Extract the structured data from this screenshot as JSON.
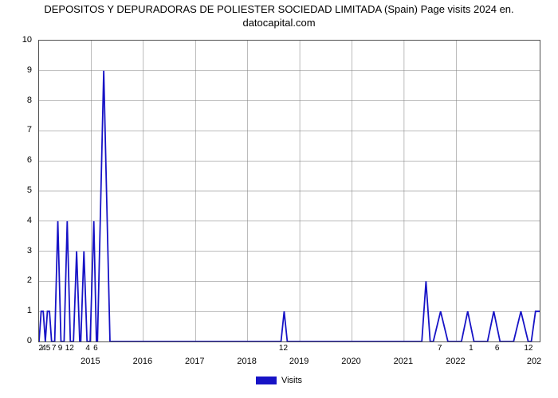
{
  "chart": {
    "type": "line",
    "title": "DEPOSITOS Y DEPURADORAS DE POLIESTER SOCIEDAD LIMITADA (Spain) Page visits 2024 en.\ndatocapital.com",
    "title_fontsize": 13,
    "background_color": "#ffffff",
    "border_color": "#4f4f4f",
    "grid_color": "#7a7a7a",
    "line_color": "#1713c6",
    "line_width": 1.8,
    "ylim": [
      0,
      10
    ],
    "ytick_step": 1,
    "yticks": [
      0,
      1,
      2,
      3,
      4,
      5,
      6,
      7,
      8,
      9,
      10
    ],
    "x_domain": [
      2014.0,
      2023.6
    ],
    "x_year_ticks": [
      2015,
      2016,
      2017,
      2018,
      2019,
      2020,
      2021,
      2022
    ],
    "x_value_labels": [
      {
        "x": 2014.05,
        "label": "2"
      },
      {
        "x": 2014.15,
        "label": "45"
      },
      {
        "x": 2014.3,
        "label": "7"
      },
      {
        "x": 2014.42,
        "label": "9"
      },
      {
        "x": 2014.6,
        "label": "12"
      },
      {
        "x": 2014.95,
        "label": "4"
      },
      {
        "x": 2015.1,
        "label": "6"
      },
      {
        "x": 2018.7,
        "label": "12"
      },
      {
        "x": 2021.7,
        "label": "7"
      },
      {
        "x": 2022.3,
        "label": "1"
      },
      {
        "x": 2022.8,
        "label": "6"
      },
      {
        "x": 2023.4,
        "label": "12"
      }
    ],
    "series": {
      "name": "Visits",
      "points": [
        [
          2014.0,
          0
        ],
        [
          2014.04,
          1
        ],
        [
          2014.08,
          1
        ],
        [
          2014.12,
          0
        ],
        [
          2014.16,
          1
        ],
        [
          2014.2,
          1
        ],
        [
          2014.24,
          0
        ],
        [
          2014.3,
          0
        ],
        [
          2014.36,
          4
        ],
        [
          2014.42,
          0
        ],
        [
          2014.48,
          0
        ],
        [
          2014.54,
          4
        ],
        [
          2014.6,
          0
        ],
        [
          2014.66,
          0
        ],
        [
          2014.72,
          3
        ],
        [
          2014.78,
          0
        ],
        [
          2014.8,
          0
        ],
        [
          2014.86,
          3
        ],
        [
          2014.92,
          0
        ],
        [
          2014.98,
          0
        ],
        [
          2015.05,
          4
        ],
        [
          2015.1,
          0
        ],
        [
          2015.12,
          0
        ],
        [
          2015.24,
          9
        ],
        [
          2015.36,
          0
        ],
        [
          2015.4,
          0
        ],
        [
          2018.6,
          0
        ],
        [
          2018.64,
          0
        ],
        [
          2018.7,
          1
        ],
        [
          2018.76,
          0
        ],
        [
          2018.8,
          0
        ],
        [
          2021.3,
          0
        ],
        [
          2021.34,
          0
        ],
        [
          2021.42,
          2
        ],
        [
          2021.5,
          0
        ],
        [
          2021.56,
          0
        ],
        [
          2021.7,
          1
        ],
        [
          2021.84,
          0
        ],
        [
          2022.1,
          0
        ],
        [
          2022.22,
          1
        ],
        [
          2022.34,
          0
        ],
        [
          2022.6,
          0
        ],
        [
          2022.72,
          1
        ],
        [
          2022.84,
          0
        ],
        [
          2023.1,
          0
        ],
        [
          2023.24,
          1
        ],
        [
          2023.38,
          0
        ],
        [
          2023.44,
          0
        ],
        [
          2023.52,
          1
        ],
        [
          2023.6,
          1
        ]
      ]
    },
    "legend": {
      "label": "Visits",
      "swatch_color": "#1713c6"
    }
  }
}
